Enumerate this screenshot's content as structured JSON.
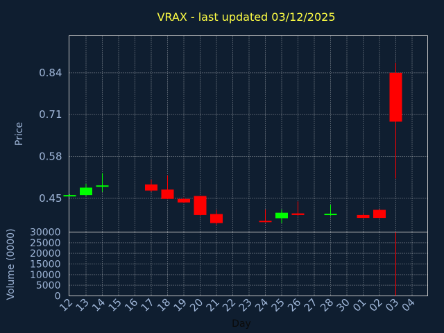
{
  "chart_data": {
    "type": "candlestick",
    "title": "VRAX - last updated 03/12/2025",
    "xlabel": "Day",
    "price_panel": {
      "ylabel": "Price",
      "ylim": [
        0.345,
        0.955
      ],
      "yticks": [
        "0.45",
        "0.58",
        "0.71",
        "0.84"
      ],
      "ytick_values": [
        0.45,
        0.58,
        0.71,
        0.84
      ]
    },
    "volume_panel": {
      "ylabel": "Volume (0000)",
      "ylim": [
        0,
        30000
      ],
      "yticks": [
        "0",
        "5000",
        "10000",
        "15000",
        "20000",
        "25000",
        "30000"
      ],
      "ytick_values": [
        0,
        5000,
        10000,
        15000,
        20000,
        25000,
        30000
      ]
    },
    "x_labels": [
      "12",
      "13",
      "14",
      "15",
      "16",
      "17",
      "18",
      "19",
      "20",
      "21",
      "22",
      "23",
      "24",
      "25",
      "26",
      "27",
      "28",
      "30",
      "01",
      "02",
      "03",
      "04"
    ],
    "candles": [
      {
        "day": "12",
        "open": 0.458,
        "high": 0.462,
        "low": 0.456,
        "close": 0.46
      },
      {
        "day": "13",
        "open": 0.46,
        "high": 0.495,
        "low": 0.458,
        "close": 0.483
      },
      {
        "day": "14",
        "open": 0.488,
        "high": 0.528,
        "low": 0.47,
        "close": 0.49
      },
      {
        "day": "17",
        "open": 0.493,
        "high": 0.508,
        "low": 0.47,
        "close": 0.474
      },
      {
        "day": "18",
        "open": 0.477,
        "high": 0.521,
        "low": 0.447,
        "close": 0.448
      },
      {
        "day": "19",
        "open": 0.448,
        "high": 0.452,
        "low": 0.435,
        "close": 0.437
      },
      {
        "day": "20",
        "open": 0.457,
        "high": 0.458,
        "low": 0.396,
        "close": 0.398
      },
      {
        "day": "21",
        "open": 0.401,
        "high": 0.414,
        "low": 0.368,
        "close": 0.373
      },
      {
        "day": "24",
        "open": 0.38,
        "high": 0.415,
        "low": 0.375,
        "close": 0.378
      },
      {
        "day": "25",
        "open": 0.388,
        "high": 0.415,
        "low": 0.373,
        "close": 0.405
      },
      {
        "day": "26",
        "open": 0.403,
        "high": 0.44,
        "low": 0.395,
        "close": 0.398
      },
      {
        "day": "28",
        "open": 0.399,
        "high": 0.43,
        "low": 0.395,
        "close": 0.402
      },
      {
        "day": "01",
        "open": 0.398,
        "high": 0.402,
        "low": 0.388,
        "close": 0.389
      },
      {
        "day": "02",
        "open": 0.414,
        "high": 0.416,
        "low": 0.388,
        "close": 0.389
      },
      {
        "day": "03",
        "open": 0.84,
        "high": 0.87,
        "low": 0.511,
        "close": 0.688
      }
    ],
    "volume": [
      {
        "day": "03",
        "value": 30000
      }
    ],
    "grid": true,
    "colors": {
      "up": "#00ff00",
      "down": "#ff0000",
      "title": "#ffff44",
      "ticks": "#9fb6d8",
      "background": "#0f1e30",
      "grid": "#ffffff"
    }
  }
}
